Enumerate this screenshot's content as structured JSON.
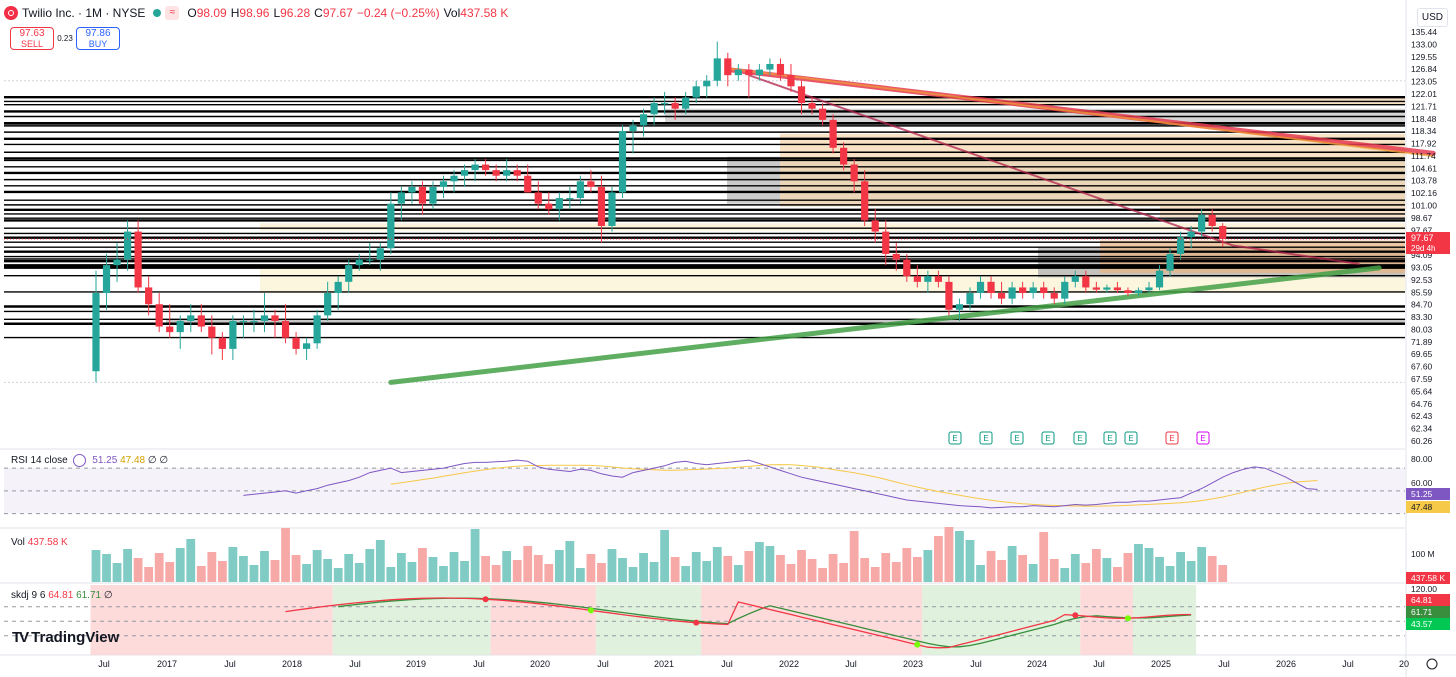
{
  "header": {
    "symbol": "Twilio Inc. · 1M · NYSE",
    "o_label": "O",
    "o": "98.09",
    "h_label": "H",
    "h": "98.96",
    "l_label": "L",
    "l": "96.28",
    "c_label": "C",
    "c": "97.67",
    "change": "−0.24 (−0.25%)",
    "vol_label": "Vol",
    "vol": "437.58 K"
  },
  "trade": {
    "sell_price": "97.63",
    "sell_label": "SELL",
    "spread": "0.23",
    "buy_price": "97.86",
    "buy_label": "BUY"
  },
  "currency": "USD",
  "branding": "TradingView",
  "colors": {
    "up": "#26a69a",
    "down": "#f23645",
    "rsi": "#7e57c2",
    "rsi_ma": "#f7c948",
    "kdj_k": "#f23645",
    "kdj_d": "#388e3c",
    "trend_green": "#43a047",
    "trend_red": "#e53950"
  },
  "chart_data": [
    {
      "type": "candlestick",
      "title": "Twilio Inc. · 1M · NYSE",
      "price_axis_labels": [
        "135.44",
        "133.00",
        "129.55",
        "126.84",
        "123.05",
        "122.01",
        "121.71",
        "118.48",
        "118.34",
        "117.92",
        "111.74",
        "104.61",
        "103.78",
        "102.16",
        "101.00",
        "98.67",
        "97.67",
        "94.53",
        "94.09",
        "93.05",
        "92.53",
        "85.59",
        "84.70",
        "83.30",
        "80.03",
        "71.89",
        "69.65",
        "67.60",
        "67.59",
        "65.64",
        "64.76",
        "62.43",
        "62.34",
        "60.26"
      ],
      "last_price_label": "97.67",
      "countdown_label": "29d 4h",
      "time_axis_labels": [
        "Jul",
        "2017",
        "Jul",
        "2018",
        "Jul",
        "2019",
        "Jul",
        "2020",
        "Jul",
        "2021",
        "Jul",
        "2022",
        "Jul",
        "2023",
        "Jul",
        "2024",
        "Jul",
        "2025",
        "Jul",
        "2026",
        "Jul",
        "20"
      ],
      "earnings_markers": [
        "E",
        "E",
        "E",
        "E",
        "E",
        "E",
        "E",
        "E",
        "E"
      ],
      "candles": [
        {
          "o": 74,
          "h": 92,
          "l": 72,
          "c": 88
        },
        {
          "o": 88,
          "h": 95,
          "l": 85,
          "c": 93
        },
        {
          "o": 93,
          "h": 97,
          "l": 90,
          "c": 94
        },
        {
          "o": 94,
          "h": 101,
          "l": 92,
          "c": 99
        },
        {
          "o": 99,
          "h": 101,
          "l": 88,
          "c": 89
        },
        {
          "o": 89,
          "h": 91,
          "l": 84,
          "c": 86
        },
        {
          "o": 86,
          "h": 88,
          "l": 81,
          "c": 82
        },
        {
          "o": 82,
          "h": 86,
          "l": 80,
          "c": 81
        },
        {
          "o": 81,
          "h": 84,
          "l": 78,
          "c": 83
        },
        {
          "o": 83,
          "h": 86,
          "l": 81,
          "c": 84
        },
        {
          "o": 84,
          "h": 86,
          "l": 81,
          "c": 82
        },
        {
          "o": 82,
          "h": 84,
          "l": 77,
          "c": 80
        },
        {
          "o": 80,
          "h": 81,
          "l": 76,
          "c": 78
        },
        {
          "o": 78,
          "h": 84,
          "l": 76,
          "c": 83
        },
        {
          "o": 83,
          "h": 84,
          "l": 80,
          "c": 83
        },
        {
          "o": 83,
          "h": 85,
          "l": 81,
          "c": 83
        },
        {
          "o": 83,
          "h": 88,
          "l": 81,
          "c": 84
        },
        {
          "o": 84,
          "h": 85,
          "l": 80,
          "c": 83
        },
        {
          "o": 83,
          "h": 86,
          "l": 79,
          "c": 80
        },
        {
          "o": 80,
          "h": 81,
          "l": 77,
          "c": 78
        },
        {
          "o": 78,
          "h": 80,
          "l": 76,
          "c": 79
        },
        {
          "o": 79,
          "h": 85,
          "l": 78,
          "c": 84
        },
        {
          "o": 84,
          "h": 90,
          "l": 83,
          "c": 88
        },
        {
          "o": 88,
          "h": 91,
          "l": 85,
          "c": 90
        },
        {
          "o": 90,
          "h": 94,
          "l": 88,
          "c": 93
        },
        {
          "o": 93,
          "h": 95,
          "l": 92,
          "c": 94
        },
        {
          "o": 94,
          "h": 97,
          "l": 93,
          "c": 94
        },
        {
          "o": 94,
          "h": 97,
          "l": 92,
          "c": 96
        },
        {
          "o": 96,
          "h": 106,
          "l": 95,
          "c": 104
        },
        {
          "o": 104,
          "h": 107,
          "l": 101,
          "c": 106
        },
        {
          "o": 106,
          "h": 108,
          "l": 104,
          "c": 107
        },
        {
          "o": 107,
          "h": 108,
          "l": 102,
          "c": 104
        },
        {
          "o": 104,
          "h": 108,
          "l": 103,
          "c": 107
        },
        {
          "o": 107,
          "h": 109,
          "l": 105,
          "c": 108
        },
        {
          "o": 108,
          "h": 110,
          "l": 106,
          "c": 109
        },
        {
          "o": 109,
          "h": 111,
          "l": 107,
          "c": 110
        },
        {
          "o": 110,
          "h": 112,
          "l": 108,
          "c": 111
        },
        {
          "o": 111,
          "h": 112,
          "l": 109,
          "c": 110
        },
        {
          "o": 110,
          "h": 111,
          "l": 108,
          "c": 109
        },
        {
          "o": 109,
          "h": 112,
          "l": 108,
          "c": 110
        },
        {
          "o": 110,
          "h": 111,
          "l": 108,
          "c": 109
        },
        {
          "o": 109,
          "h": 111,
          "l": 106,
          "c": 106
        },
        {
          "o": 106,
          "h": 108,
          "l": 103,
          "c": 104
        },
        {
          "o": 104,
          "h": 106,
          "l": 102,
          "c": 103
        },
        {
          "o": 103,
          "h": 106,
          "l": 101,
          "c": 105
        },
        {
          "o": 105,
          "h": 107,
          "l": 103,
          "c": 105
        },
        {
          "o": 105,
          "h": 109,
          "l": 104,
          "c": 108
        },
        {
          "o": 108,
          "h": 110,
          "l": 106,
          "c": 107
        },
        {
          "o": 107,
          "h": 109,
          "l": 97,
          "c": 100
        },
        {
          "o": 100,
          "h": 107,
          "l": 99,
          "c": 106
        },
        {
          "o": 106,
          "h": 118,
          "l": 105,
          "c": 117
        },
        {
          "o": 117,
          "h": 119,
          "l": 113,
          "c": 118
        },
        {
          "o": 118,
          "h": 121,
          "l": 116,
          "c": 120
        },
        {
          "o": 120,
          "h": 123,
          "l": 118,
          "c": 122
        },
        {
          "o": 122,
          "h": 124,
          "l": 120,
          "c": 122
        },
        {
          "o": 122,
          "h": 123,
          "l": 119,
          "c": 121
        },
        {
          "o": 121,
          "h": 124,
          "l": 120,
          "c": 123
        },
        {
          "o": 123,
          "h": 126,
          "l": 122,
          "c": 125
        },
        {
          "o": 125,
          "h": 127,
          "l": 123,
          "c": 126
        },
        {
          "o": 126,
          "h": 133,
          "l": 125,
          "c": 130
        },
        {
          "o": 130,
          "h": 131,
          "l": 125,
          "c": 127
        },
        {
          "o": 127,
          "h": 129,
          "l": 126,
          "c": 128
        },
        {
          "o": 128,
          "h": 129,
          "l": 123,
          "c": 127
        },
        {
          "o": 127,
          "h": 129,
          "l": 126,
          "c": 128
        },
        {
          "o": 128,
          "h": 130,
          "l": 127,
          "c": 129
        },
        {
          "o": 129,
          "h": 130,
          "l": 126,
          "c": 127
        },
        {
          "o": 127,
          "h": 129,
          "l": 124,
          "c": 125
        },
        {
          "o": 125,
          "h": 126,
          "l": 120,
          "c": 122
        },
        {
          "o": 122,
          "h": 123,
          "l": 120,
          "c": 121
        },
        {
          "o": 121,
          "h": 122,
          "l": 118,
          "c": 119
        },
        {
          "o": 119,
          "h": 120,
          "l": 113,
          "c": 114
        },
        {
          "o": 114,
          "h": 115,
          "l": 110,
          "c": 111
        },
        {
          "o": 111,
          "h": 112,
          "l": 106,
          "c": 108
        },
        {
          "o": 108,
          "h": 110,
          "l": 100,
          "c": 101
        },
        {
          "o": 101,
          "h": 103,
          "l": 97,
          "c": 99
        },
        {
          "o": 99,
          "h": 101,
          "l": 93,
          "c": 95
        },
        {
          "o": 95,
          "h": 97,
          "l": 92,
          "c": 94
        },
        {
          "o": 94,
          "h": 95,
          "l": 90,
          "c": 91
        },
        {
          "o": 91,
          "h": 93,
          "l": 89,
          "c": 90
        },
        {
          "o": 90,
          "h": 92,
          "l": 88,
          "c": 91
        },
        {
          "o": 91,
          "h": 92,
          "l": 89,
          "c": 90
        },
        {
          "o": 90,
          "h": 91,
          "l": 84,
          "c": 85
        },
        {
          "o": 85,
          "h": 87,
          "l": 83,
          "c": 86
        },
        {
          "o": 86,
          "h": 89,
          "l": 85,
          "c": 88
        },
        {
          "o": 88,
          "h": 91,
          "l": 87,
          "c": 90
        },
        {
          "o": 90,
          "h": 91,
          "l": 87,
          "c": 88
        },
        {
          "o": 88,
          "h": 90,
          "l": 86,
          "c": 87
        },
        {
          "o": 87,
          "h": 90,
          "l": 86,
          "c": 89
        },
        {
          "o": 89,
          "h": 90,
          "l": 87,
          "c": 88
        },
        {
          "o": 88,
          "h": 90,
          "l": 87,
          "c": 89
        },
        {
          "o": 89,
          "h": 90,
          "l": 87,
          "c": 88
        },
        {
          "o": 88,
          "h": 89,
          "l": 86,
          "c": 87
        },
        {
          "o": 87,
          "h": 91,
          "l": 86,
          "c": 90
        },
        {
          "o": 90,
          "h": 92,
          "l": 89,
          "c": 91
        },
        {
          "o": 91,
          "h": 92,
          "l": 88,
          "c": 89
        },
        {
          "o": 89,
          "h": 90,
          "l": 88,
          "c": 88.6
        },
        {
          "o": 88.6,
          "h": 89.5,
          "l": 88,
          "c": 89
        },
        {
          "o": 89,
          "h": 90,
          "l": 88,
          "c": 88.5
        },
        {
          "o": 88.5,
          "h": 89,
          "l": 87.5,
          "c": 88
        },
        {
          "o": 88,
          "h": 89,
          "l": 87.5,
          "c": 88.5
        },
        {
          "o": 88.5,
          "h": 90,
          "l": 88,
          "c": 89
        },
        {
          "o": 89,
          "h": 93,
          "l": 88.5,
          "c": 92
        },
        {
          "o": 92,
          "h": 96,
          "l": 91,
          "c": 95
        },
        {
          "o": 95,
          "h": 99,
          "l": 94,
          "c": 98
        },
        {
          "o": 98,
          "h": 100,
          "l": 96,
          "c": 99
        },
        {
          "o": 99,
          "h": 103,
          "l": 98,
          "c": 102
        },
        {
          "o": 102,
          "h": 103,
          "l": 99,
          "c": 100
        },
        {
          "o": 100,
          "h": 100.5,
          "l": 96.3,
          "c": 97.67
        }
      ],
      "trendlines": [
        {
          "name": "support",
          "from": {
            "x": 28,
            "y": 72
          },
          "to": {
            "x": 119,
            "y": 92.5
          }
        },
        {
          "name": "resistance",
          "from": {
            "x": 60,
            "y": 128
          },
          "to": {
            "x": 127,
            "y": 113
          }
        }
      ]
    },
    {
      "type": "line",
      "title": "RSI 14 close",
      "values_label": [
        "51.25",
        "47.48",
        "∅",
        "∅"
      ],
      "axis_labels": [
        "80.00",
        "60.00"
      ],
      "last_value_labels": [
        "51.25",
        "47.48"
      ]
    },
    {
      "type": "bar",
      "title": "Vol",
      "value_label": "437.58 K",
      "axis_labels": [
        "100 M"
      ],
      "last_value_label": "437.58 K"
    },
    {
      "type": "line",
      "title": "skdj 9 6",
      "values_label": [
        "64.81",
        "61.71",
        "∅"
      ],
      "axis_labels": [
        "120.00"
      ],
      "last_value_labels": [
        "64.81",
        "61.71",
        "43.57"
      ]
    }
  ]
}
